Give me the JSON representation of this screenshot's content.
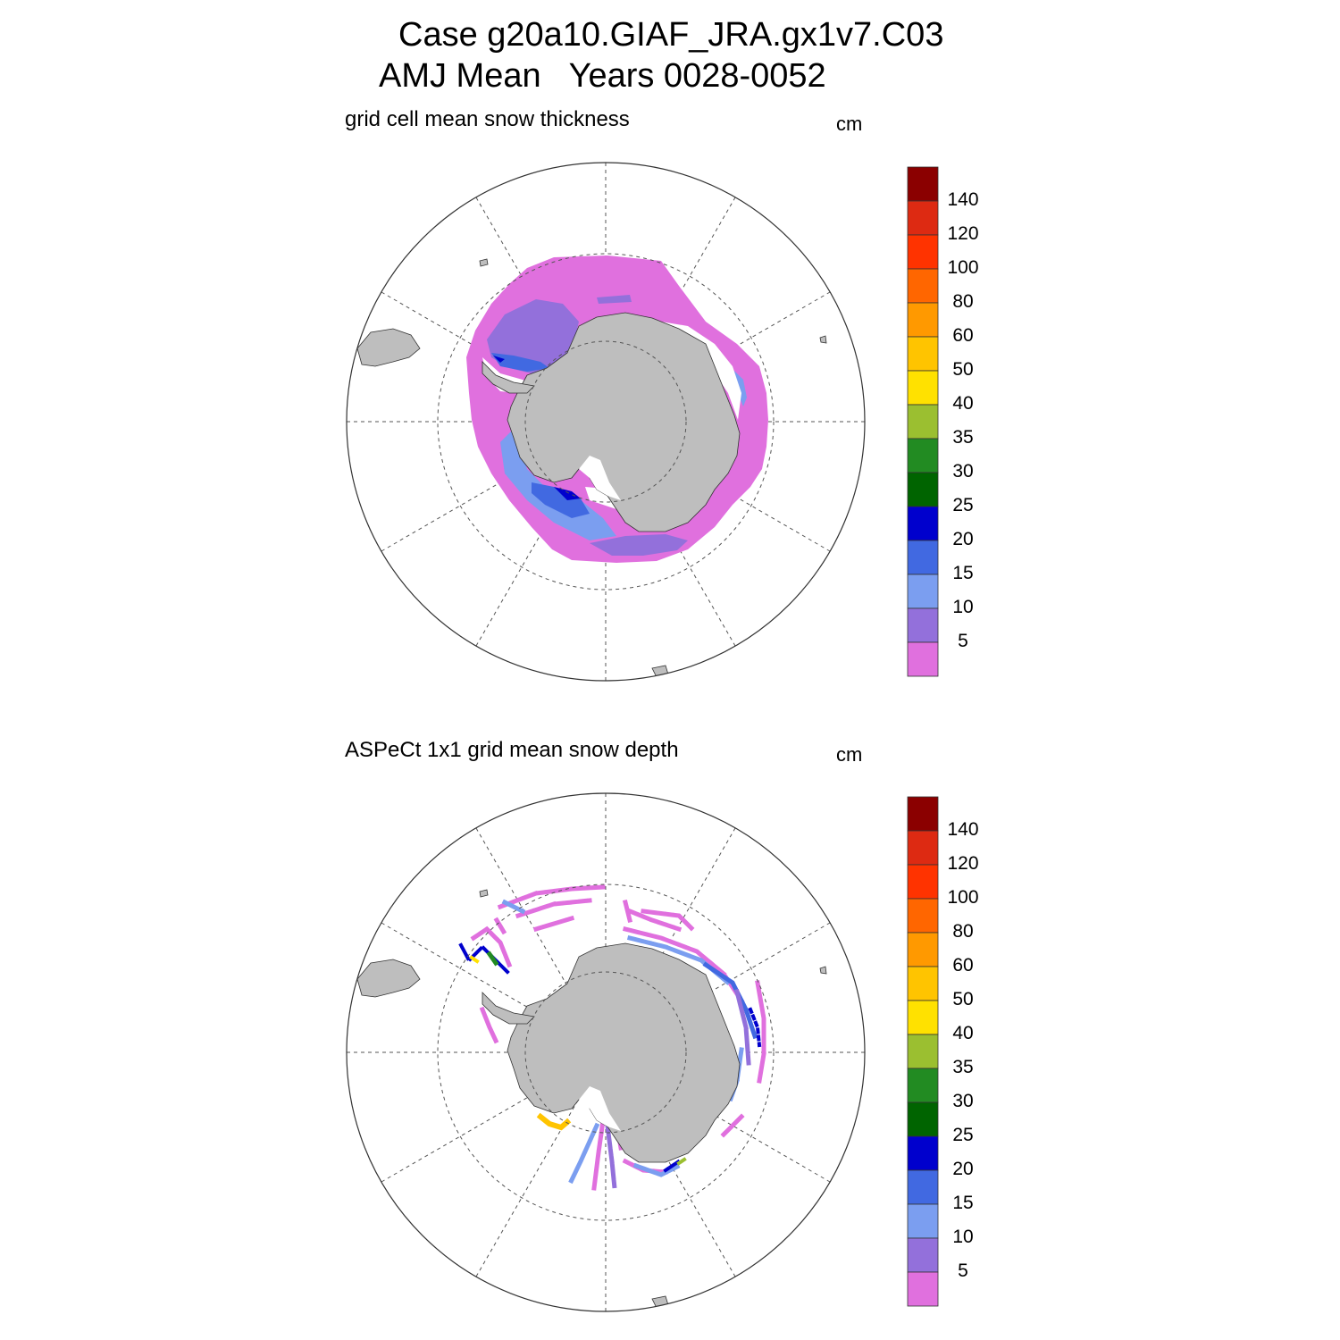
{
  "title": {
    "line1": "Case g20a10.GIAF_JRA.gx1v7.C03",
    "line2": "AMJ Mean   Years 0028-0052"
  },
  "panels": [
    {
      "id": "model",
      "subtitle": "grid cell mean snow thickness",
      "units": "cm"
    },
    {
      "id": "observations",
      "subtitle": "ASPeCt 1x1 grid mean snow depth",
      "units": "cm"
    }
  ],
  "colorbar": {
    "labels": [
      "140",
      "120",
      "100",
      "80",
      "60",
      "50",
      "40",
      "35",
      "30",
      "25",
      "20",
      "15",
      "10",
      "5"
    ],
    "colors": [
      "#8B0000",
      "#DD2A12",
      "#FF3300",
      "#FF6600",
      "#FF9900",
      "#FFC400",
      "#FFE100",
      "#9BBF30",
      "#228B22",
      "#006400",
      "#0000CD",
      "#4169E1",
      "#7B9EF0",
      "#9370DB",
      "#E070DE"
    ]
  },
  "colors": {
    "land": "#BEBEBE",
    "grid": "#555555"
  }
}
